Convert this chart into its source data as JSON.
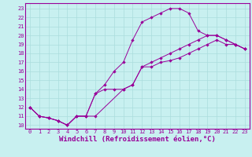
{
  "bg_color": "#c8f0f0",
  "grid_color": "#aadddd",
  "line_color": "#990099",
  "marker": "D",
  "markersize": 2.2,
  "xlabel": "Windchill (Refroidissement éolien,°C)",
  "xlabel_color": "#990099",
  "xlabel_fontsize": 6.5,
  "ylabel_ticks": [
    10,
    11,
    12,
    13,
    14,
    15,
    16,
    17,
    18,
    19,
    20,
    21,
    22,
    23
  ],
  "xlabel_ticks": [
    0,
    1,
    2,
    3,
    4,
    5,
    6,
    7,
    8,
    9,
    10,
    11,
    12,
    13,
    14,
    15,
    16,
    17,
    18,
    19,
    20,
    21,
    22,
    23
  ],
  "xlim": [
    -0.5,
    23.5
  ],
  "ylim": [
    9.6,
    23.6
  ],
  "tick_fontsize": 5.0,
  "tick_color": "#990099",
  "line1_x": [
    0,
    1,
    2,
    3,
    4,
    5,
    6,
    7,
    8,
    9,
    10,
    11,
    12,
    13,
    14,
    15,
    16,
    17,
    18,
    19,
    20,
    21,
    22,
    23
  ],
  "line1_y": [
    12,
    11,
    10.8,
    10.5,
    10,
    11,
    11,
    13.5,
    14,
    14,
    14,
    14.5,
    16.5,
    16.5,
    17,
    17.2,
    17.5,
    18,
    18.5,
    19,
    19.5,
    19,
    19,
    18.5
  ],
  "line2_x": [
    0,
    1,
    2,
    3,
    4,
    5,
    6,
    7,
    8,
    9,
    10,
    11,
    12,
    13,
    14,
    15,
    16,
    17,
    18,
    19,
    20,
    21,
    22,
    23
  ],
  "line2_y": [
    12,
    11,
    10.8,
    10.5,
    10,
    11,
    11,
    13.5,
    14.5,
    16,
    17,
    19.5,
    21.5,
    22,
    22.5,
    23,
    23,
    22.5,
    20.5,
    20,
    20,
    19.5,
    19,
    18.5
  ],
  "line3_x": [
    0,
    1,
    2,
    3,
    4,
    5,
    6,
    7,
    10,
    11,
    12,
    13,
    14,
    15,
    16,
    17,
    18,
    19,
    20,
    21,
    22,
    23
  ],
  "line3_y": [
    12,
    11,
    10.8,
    10.5,
    10,
    11,
    11,
    11,
    14,
    14.5,
    16.5,
    17,
    17.5,
    18,
    18.5,
    19,
    19.5,
    20,
    20,
    19.5,
    19,
    18.5
  ]
}
